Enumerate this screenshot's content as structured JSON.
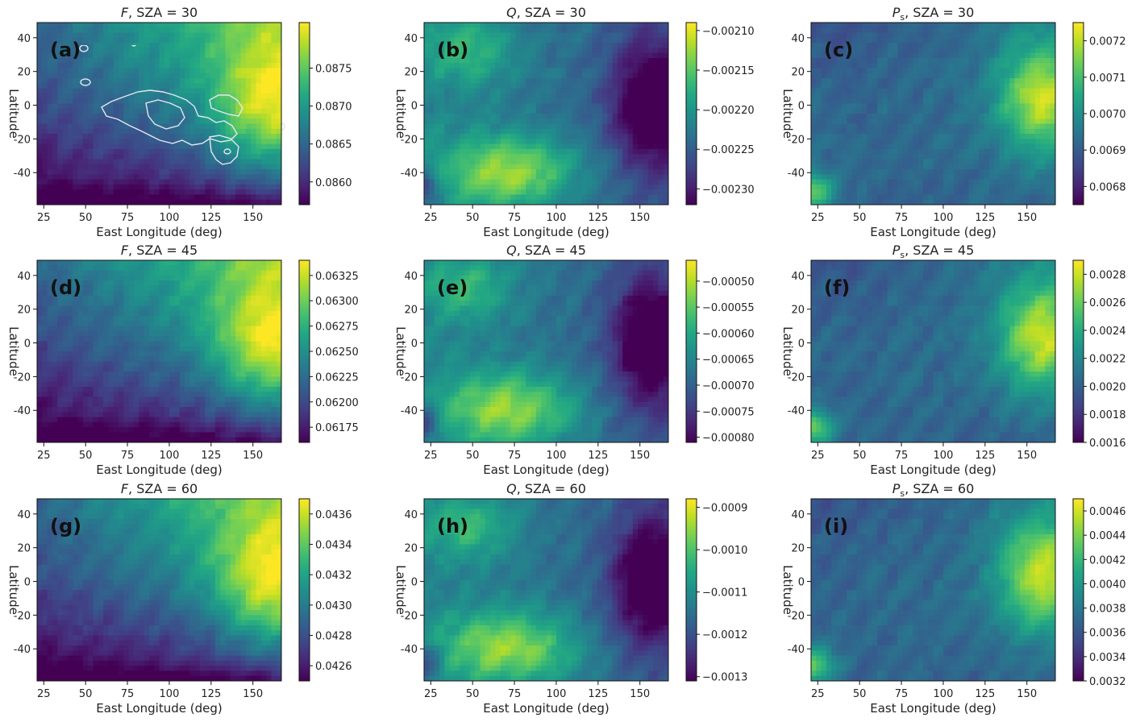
{
  "figure": {
    "colormap": "viridis",
    "overlay_color": "#e6e6f0"
  },
  "chart_data": [
    {
      "type": "heatmap",
      "panel_label": "(a)",
      "title_var": "F",
      "title_rest": ", SZA = 30",
      "xlabel": "East Longitude (deg)",
      "ylabel": "Latitude",
      "xlim": [
        21,
        167
      ],
      "ylim": [
        -59,
        49
      ],
      "xticks": [
        "25",
        "50",
        "75",
        "100",
        "125",
        "150"
      ],
      "yticks": [
        "40",
        "20",
        "0",
        "-20",
        "-40"
      ],
      "clim": [
        0.0857,
        0.0881
      ],
      "cticks": [
        "0.0875",
        "0.0870",
        "0.0865",
        "0.0860"
      ],
      "pattern": "F"
    },
    {
      "type": "heatmap",
      "panel_label": "(b)",
      "title_var": "Q",
      "title_rest": ", SZA = 30",
      "xlabel": "East Longitude (deg)",
      "ylabel": "Latitude",
      "xlim": [
        21,
        167
      ],
      "ylim": [
        -59,
        49
      ],
      "xticks": [
        "25",
        "50",
        "75",
        "100",
        "125",
        "150"
      ],
      "yticks": [
        "40",
        "20",
        "0",
        "-20",
        "-40"
      ],
      "clim": [
        -0.00232,
        -0.00209
      ],
      "cticks": [
        "−0.00210",
        "−0.00215",
        "−0.00220",
        "−0.00225",
        "−0.00230"
      ],
      "pattern": "Q"
    },
    {
      "type": "heatmap",
      "panel_label": "(c)",
      "title_var": "P",
      "title_sub": "s",
      "title_rest": ", SZA = 30",
      "xlabel": "East Longitude (deg)",
      "ylabel": "Latitude",
      "xlim": [
        21,
        167
      ],
      "ylim": [
        -59,
        49
      ],
      "xticks": [
        "25",
        "50",
        "75",
        "100",
        "125",
        "150"
      ],
      "yticks": [
        "40",
        "20",
        "0",
        "-20",
        "-40"
      ],
      "clim": [
        0.00675,
        0.00725
      ],
      "cticks": [
        "0.0072",
        "0.0071",
        "0.0070",
        "0.0069",
        "0.0068"
      ],
      "pattern": "P"
    },
    {
      "type": "heatmap",
      "panel_label": "(d)",
      "title_var": "F",
      "title_rest": ", SZA = 45",
      "xlabel": "East Longitude (deg)",
      "ylabel": "Latitude",
      "xlim": [
        21,
        167
      ],
      "ylim": [
        -59,
        49
      ],
      "xticks": [
        "25",
        "50",
        "75",
        "100",
        "125",
        "150"
      ],
      "yticks": [
        "40",
        "20",
        "0",
        "-20",
        "-40"
      ],
      "clim": [
        0.0616,
        0.0634
      ],
      "cticks": [
        "0.06325",
        "0.06300",
        "0.06275",
        "0.06250",
        "0.06225",
        "0.06200",
        "0.06175"
      ],
      "pattern": "F"
    },
    {
      "type": "heatmap",
      "panel_label": "(e)",
      "title_var": "Q",
      "title_rest": ", SZA = 45",
      "xlabel": "East Longitude (deg)",
      "ylabel": "Latitude",
      "xlim": [
        21,
        167
      ],
      "ylim": [
        -59,
        49
      ],
      "xticks": [
        "25",
        "50",
        "75",
        "100",
        "125",
        "150"
      ],
      "yticks": [
        "40",
        "20",
        "0",
        "-20",
        "-40"
      ],
      "clim": [
        -0.00081,
        -0.00046
      ],
      "cticks": [
        "−0.00050",
        "−0.00055",
        "−0.00060",
        "−0.00065",
        "−0.00070",
        "−0.00075",
        "−0.00080"
      ],
      "pattern": "Q"
    },
    {
      "type": "heatmap",
      "panel_label": "(f)",
      "title_var": "P",
      "title_sub": "s",
      "title_rest": ", SZA = 45",
      "xlabel": "East Longitude (deg)",
      "ylabel": "Latitude",
      "xlim": [
        21,
        167
      ],
      "ylim": [
        -59,
        49
      ],
      "xticks": [
        "25",
        "50",
        "75",
        "100",
        "125",
        "150"
      ],
      "yticks": [
        "40",
        "20",
        "0",
        "-20",
        "-40"
      ],
      "clim": [
        0.0016,
        0.0029
      ],
      "cticks": [
        "0.0028",
        "0.0026",
        "0.0024",
        "0.0022",
        "0.0020",
        "0.0018",
        "0.0016"
      ],
      "pattern": "P"
    },
    {
      "type": "heatmap",
      "panel_label": "(g)",
      "title_var": "F",
      "title_rest": ", SZA = 60",
      "xlabel": "East Longitude (deg)",
      "ylabel": "Latitude",
      "xlim": [
        21,
        167
      ],
      "ylim": [
        -59,
        49
      ],
      "xticks": [
        "25",
        "50",
        "75",
        "100",
        "125",
        "150"
      ],
      "yticks": [
        "40",
        "20",
        "0",
        "-20",
        "-40"
      ],
      "clim": [
        0.0425,
        0.0437
      ],
      "cticks": [
        "0.0436",
        "0.0434",
        "0.0432",
        "0.0430",
        "0.0428",
        "0.0426"
      ],
      "pattern": "F"
    },
    {
      "type": "heatmap",
      "panel_label": "(h)",
      "title_var": "Q",
      "title_rest": ", SZA = 60",
      "xlabel": "East Longitude (deg)",
      "ylabel": "Latitude",
      "xlim": [
        21,
        167
      ],
      "ylim": [
        -59,
        49
      ],
      "xticks": [
        "25",
        "50",
        "75",
        "100",
        "125",
        "150"
      ],
      "yticks": [
        "40",
        "20",
        "0",
        "-20",
        "-40"
      ],
      "clim": [
        -0.00131,
        -0.00088
      ],
      "cticks": [
        "−0.0009",
        "−0.0010",
        "−0.0011",
        "−0.0012",
        "−0.0013"
      ],
      "pattern": "Q"
    },
    {
      "type": "heatmap",
      "panel_label": "(i)",
      "title_var": "P",
      "title_sub": "s",
      "title_rest": ", SZA = 60",
      "xlabel": "East Longitude (deg)",
      "ylabel": "Latitude",
      "xlim": [
        21,
        167
      ],
      "ylim": [
        -59,
        49
      ],
      "xticks": [
        "25",
        "50",
        "75",
        "100",
        "125",
        "150"
      ],
      "yticks": [
        "40",
        "20",
        "0",
        "-20",
        "-40"
      ],
      "clim": [
        0.0032,
        0.0047
      ],
      "cticks": [
        "0.0046",
        "0.0044",
        "0.0042",
        "0.0040",
        "0.0038",
        "0.0036",
        "0.0034",
        "0.0032"
      ],
      "pattern": "P"
    }
  ]
}
